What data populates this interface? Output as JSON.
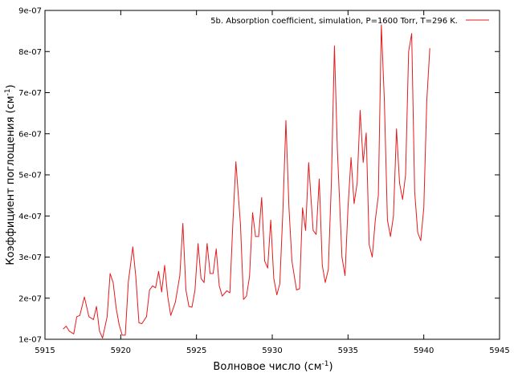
{
  "chart_data": {
    "type": "line",
    "title": "",
    "xlabel": "Волновое число (см",
    "xlabel_sup": "-1",
    "xlabel_tail": ")",
    "ylabel": "Коэффициент поглощения (см",
    "ylabel_sup": "-1",
    "ylabel_tail": ")",
    "xlim": [
      5915,
      5945
    ],
    "ylim": [
      1e-07,
      9e-07
    ],
    "x_ticks": [
      5915,
      5920,
      5925,
      5930,
      5935,
      5940,
      5945
    ],
    "x_tick_labels": [
      "5915",
      "5920",
      "5925",
      "5930",
      "5935",
      "5940",
      "5945"
    ],
    "y_ticks": [
      1e-07,
      2e-07,
      3e-07,
      4e-07,
      5e-07,
      6e-07,
      7e-07,
      8e-07,
      9e-07
    ],
    "y_tick_labels": [
      "1e-07",
      "2e-07",
      "3e-07",
      "4e-07",
      "5e-07",
      "6e-07",
      "7e-07",
      "8e-07",
      "9e-07"
    ],
    "grid": false,
    "legend_position": "top-right",
    "series": [
      {
        "name": "5b. Absorption coefficient, simulation, P=1600 Torr, T=296 K.",
        "color": "#e41a1c",
        "x": [
          5916.2,
          5916.4,
          5916.6,
          5916.9,
          5917.1,
          5917.3,
          5917.6,
          5917.9,
          5918.2,
          5918.4,
          5918.6,
          5918.8,
          5919.1,
          5919.3,
          5919.5,
          5919.7,
          5919.9,
          5920.1,
          5920.3,
          5920.5,
          5920.8,
          5921.0,
          5921.2,
          5921.4,
          5921.7,
          5921.9,
          5922.1,
          5922.3,
          5922.5,
          5922.7,
          5922.9,
          5923.1,
          5923.3,
          5923.6,
          5923.9,
          5924.1,
          5924.3,
          5924.5,
          5924.7,
          5924.9,
          5925.1,
          5925.3,
          5925.5,
          5925.7,
          5925.9,
          5926.1,
          5926.3,
          5926.5,
          5926.7,
          5927.0,
          5927.2,
          5927.4,
          5927.6,
          5927.9,
          5928.1,
          5928.3,
          5928.5,
          5928.7,
          5928.9,
          5929.1,
          5929.3,
          5929.5,
          5929.7,
          5929.9,
          5930.1,
          5930.3,
          5930.5,
          5930.7,
          5930.9,
          5931.1,
          5931.3,
          5931.6,
          5931.8,
          5932.0,
          5932.2,
          5932.4,
          5932.7,
          5932.9,
          5933.1,
          5933.3,
          5933.5,
          5933.7,
          5933.9,
          5934.1,
          5934.3,
          5934.6,
          5934.8,
          5935.0,
          5935.2,
          5935.4,
          5935.6,
          5935.8,
          5936.0,
          5936.2,
          5936.4,
          5936.6,
          5936.8,
          5937.0,
          5937.2,
          5937.4,
          5937.6,
          5937.8,
          5938.0,
          5938.2,
          5938.4,
          5938.6,
          5938.8,
          5939.0,
          5939.2,
          5939.4,
          5939.6,
          5939.8,
          5940.0,
          5940.2,
          5940.4
        ],
        "values": [
          1.25e-07,
          1.32e-07,
          1.2e-07,
          1.13e-07,
          1.55e-07,
          1.58e-07,
          2.03e-07,
          1.55e-07,
          1.48e-07,
          1.8e-07,
          1.2e-07,
          1.03e-07,
          1.55e-07,
          2.6e-07,
          2.38e-07,
          1.75e-07,
          1.35e-07,
          1.1e-07,
          1.1e-07,
          2.4e-07,
          3.25e-07,
          2.5e-07,
          1.4e-07,
          1.38e-07,
          1.55e-07,
          2.2e-07,
          2.3e-07,
          2.25e-07,
          2.65e-07,
          2.15e-07,
          2.8e-07,
          2.05e-07,
          1.58e-07,
          1.9e-07,
          2.55e-07,
          3.82e-07,
          2.2e-07,
          1.8e-07,
          1.78e-07,
          2.2e-07,
          3.33e-07,
          2.48e-07,
          2.38e-07,
          3.33e-07,
          2.6e-07,
          2.6e-07,
          3.2e-07,
          2.3e-07,
          2.05e-07,
          2.18e-07,
          2.13e-07,
          3.8e-07,
          5.32e-07,
          3.8e-07,
          1.97e-07,
          2.05e-07,
          2.53e-07,
          4.08e-07,
          3.5e-07,
          3.5e-07,
          4.45e-07,
          2.9e-07,
          2.73e-07,
          3.9e-07,
          2.48e-07,
          2.08e-07,
          2.35e-07,
          4.1e-07,
          6.32e-07,
          4.2e-07,
          2.9e-07,
          2.2e-07,
          2.23e-07,
          4.2e-07,
          3.65e-07,
          5.3e-07,
          3.65e-07,
          3.55e-07,
          4.9e-07,
          2.8e-07,
          2.38e-07,
          2.7e-07,
          4.8e-07,
          8.14e-07,
          5.6e-07,
          3e-07,
          2.55e-07,
          4.2e-07,
          5.42e-07,
          4.3e-07,
          4.8e-07,
          6.57e-07,
          5.3e-07,
          6.02e-07,
          3.3e-07,
          3e-07,
          3.9e-07,
          4.5e-07,
          8.65e-07,
          6.8e-07,
          3.9e-07,
          3.5e-07,
          4e-07,
          6.12e-07,
          4.8e-07,
          4.4e-07,
          5e-07,
          8e-07,
          8.44e-07,
          4.6e-07,
          3.6e-07,
          3.4e-07,
          4.2e-07,
          6.8e-07,
          8.08e-07
        ]
      }
    ]
  }
}
